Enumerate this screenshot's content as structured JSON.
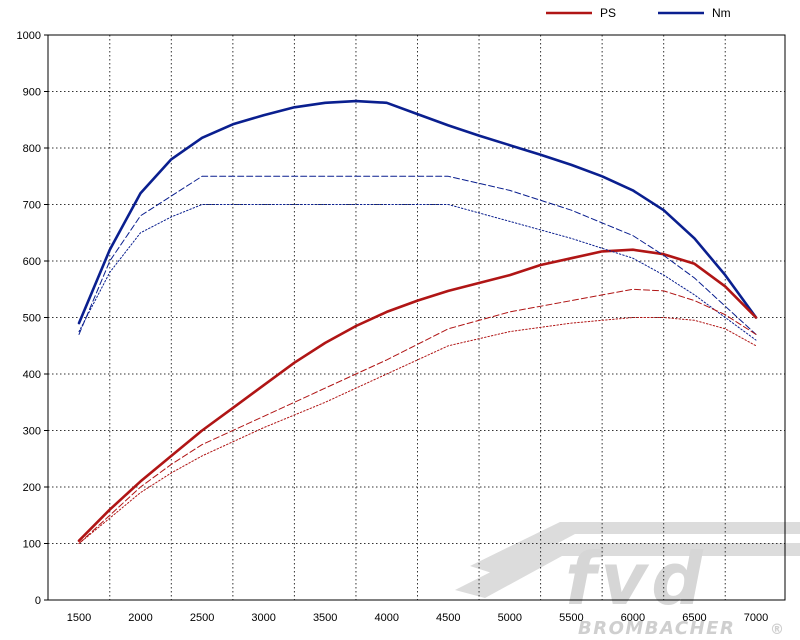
{
  "chart_data": {
    "type": "line",
    "xlim": [
      1500,
      7000
    ],
    "ylim": [
      0,
      1000
    ],
    "x_ticks": [
      1500,
      2000,
      2500,
      3000,
      3500,
      4000,
      4500,
      5000,
      5500,
      6000,
      6500,
      7000
    ],
    "y_ticks": [
      0,
      100,
      200,
      300,
      400,
      500,
      600,
      700,
      800,
      900,
      1000
    ],
    "grid": true,
    "legend_position": "top-right",
    "legend": [
      {
        "label": "PS",
        "color": "#b01515"
      },
      {
        "label": "Nm",
        "color": "#0a1f8f"
      }
    ],
    "series": [
      {
        "name": "Nm",
        "color": "#0a1f8f",
        "style": "solid",
        "x": [
          1500,
          1750,
          2000,
          2250,
          2500,
          2750,
          3000,
          3250,
          3500,
          3750,
          4000,
          4250,
          4500,
          4750,
          5000,
          5250,
          5500,
          5750,
          6000,
          6250,
          6500,
          6750,
          7000
        ],
        "y": [
          490,
          620,
          720,
          780,
          818,
          842,
          858,
          872,
          880,
          883,
          880,
          860,
          840,
          822,
          805,
          788,
          770,
          750,
          725,
          690,
          640,
          575,
          500
        ]
      },
      {
        "name": "PS",
        "color": "#b01515",
        "style": "solid",
        "x": [
          1500,
          1750,
          2000,
          2250,
          2500,
          2750,
          3000,
          3250,
          3500,
          3750,
          4000,
          4250,
          4500,
          4750,
          5000,
          5250,
          5500,
          5750,
          6000,
          6250,
          6500,
          6750,
          7000
        ],
        "y": [
          105,
          160,
          210,
          255,
          300,
          340,
          380,
          420,
          455,
          485,
          510,
          530,
          547,
          561,
          575,
          593,
          605,
          617,
          620,
          612,
          595,
          555,
          500
        ]
      },
      {
        "color": "#0a1f8f",
        "style": "dashed",
        "x": [
          1500,
          1750,
          2000,
          2250,
          2500,
          3000,
          3500,
          4000,
          4500,
          5000,
          5500,
          6000,
          6250,
          6500,
          6750,
          7000
        ],
        "y": [
          470,
          600,
          680,
          715,
          750,
          750,
          750,
          750,
          750,
          725,
          690,
          645,
          610,
          570,
          520,
          470
        ]
      },
      {
        "color": "#0a1f8f",
        "style": "dotted",
        "x": [
          1500,
          1750,
          2000,
          2250,
          2500,
          3000,
          3500,
          4000,
          4500,
          5000,
          5500,
          6000,
          6250,
          6500,
          6750,
          7000
        ],
        "y": [
          475,
          580,
          650,
          678,
          700,
          700,
          700,
          700,
          700,
          670,
          640,
          605,
          575,
          540,
          500,
          460
        ]
      },
      {
        "color": "#b01515",
        "style": "dashed",
        "x": [
          1500,
          1750,
          2000,
          2250,
          2500,
          3000,
          3500,
          4000,
          4500,
          5000,
          5500,
          5750,
          6000,
          6250,
          6500,
          6750,
          7000
        ],
        "y": [
          100,
          150,
          200,
          240,
          275,
          325,
          375,
          425,
          480,
          510,
          530,
          540,
          550,
          547,
          530,
          505,
          470
        ]
      },
      {
        "color": "#b01515",
        "style": "dotted",
        "x": [
          1500,
          1750,
          2000,
          2250,
          2500,
          3000,
          3500,
          4000,
          4500,
          5000,
          5500,
          6000,
          6250,
          6500,
          6750,
          7000
        ],
        "y": [
          100,
          145,
          190,
          225,
          255,
          305,
          350,
          400,
          450,
          475,
          490,
          500,
          500,
          495,
          480,
          450
        ]
      }
    ]
  },
  "watermark": {
    "brand": "fvd",
    "name": "BROMBACHER",
    "mark": "®"
  }
}
